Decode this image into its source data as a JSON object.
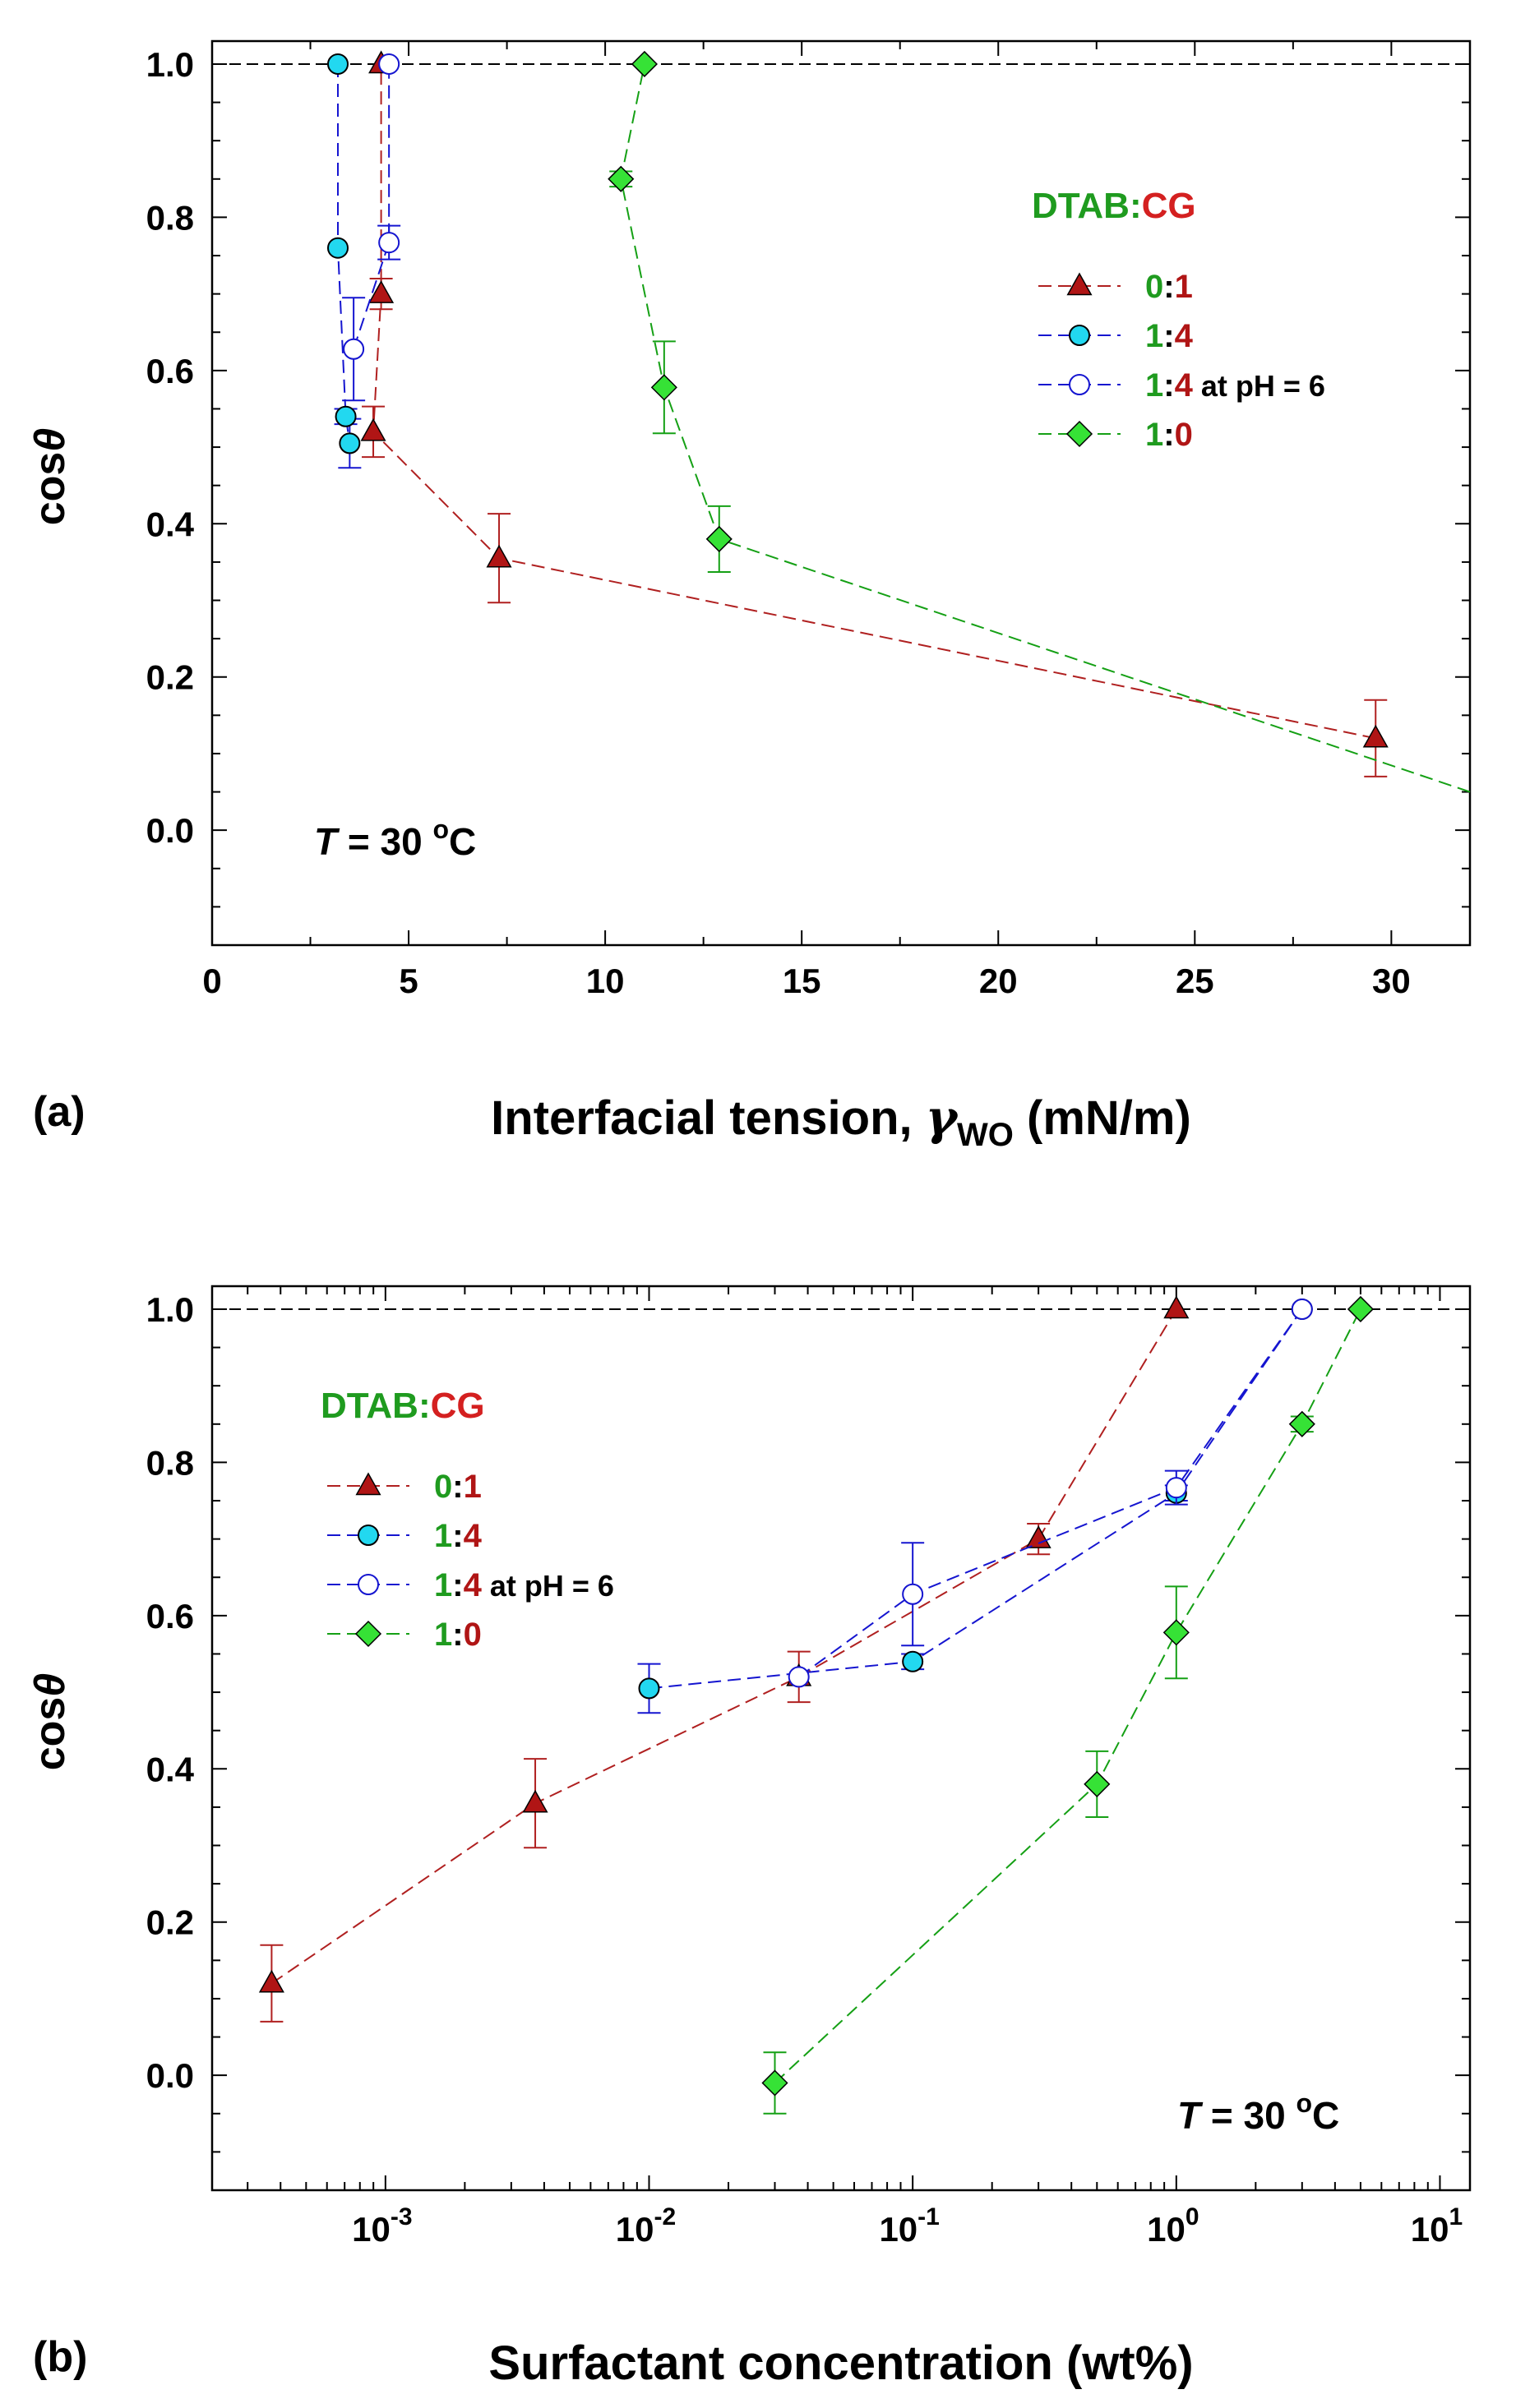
{
  "colors": {
    "green": "#1f9b1f",
    "red": "#b01515",
    "blue": "#1010c8",
    "cg_red": "#d42020",
    "cyan": "#22d8f0",
    "lime": "#36e236",
    "darkred_line": "#b02020",
    "blue_line": "#1515d0",
    "green_line": "#15a015",
    "black": "#000000"
  },
  "panels": [
    {
      "id": "a",
      "panel_label": "(a)",
      "xlabel_main": "Interfacial tension, ",
      "xlabel_symbol": "γ",
      "xlabel_sub": "WO",
      "xlabel_units": " (mN/m)",
      "ylabel_pre": "cos",
      "ylabel_theta": "θ",
      "temperature": {
        "symbol": "T",
        "rest": " = 30 ",
        "sup": "o",
        "unit": "C"
      },
      "legend_title": {
        "a": "DTAB",
        "sep": ":",
        "b": "CG"
      },
      "legend": [
        {
          "num": "0",
          "sep": ":",
          "den": "1",
          "extra": ""
        },
        {
          "num": "1",
          "sep": ":",
          "den": "4",
          "extra": ""
        },
        {
          "num": "1",
          "sep": ":",
          "den": "4",
          "extra": " at pH = 6"
        },
        {
          "num": "1",
          "sep": ":",
          "den": "0",
          "extra": ""
        }
      ]
    },
    {
      "id": "b",
      "panel_label": "(b)",
      "xlabel": "Surfactant concentration (wt%)",
      "ylabel_pre": "cos",
      "ylabel_theta": "θ",
      "temperature": {
        "symbol": "T",
        "rest": " = 30 ",
        "sup": "o",
        "unit": "C"
      },
      "legend_title": {
        "a": "DTAB",
        "sep": ":",
        "b": "CG"
      },
      "legend": [
        {
          "num": "0",
          "sep": ":",
          "den": "1",
          "extra": ""
        },
        {
          "num": "1",
          "sep": ":",
          "den": "4",
          "extra": ""
        },
        {
          "num": "1",
          "sep": ":",
          "den": "4",
          "extra": " at pH = 6"
        },
        {
          "num": "1",
          "sep": ":",
          "den": "0",
          "extra": ""
        }
      ]
    }
  ],
  "chart_data": [
    {
      "type": "line",
      "panel": "a",
      "xlabel": "Interfacial tension, γWO (mN/m)",
      "ylabel": "cosθ",
      "xlim": [
        0,
        32
      ],
      "ylim": [
        -0.15,
        1.03
      ],
      "x_ticks": [
        0,
        5,
        10,
        15,
        20,
        25,
        30
      ],
      "x_tick_labels": [
        "0",
        "5",
        "10",
        "15",
        "20",
        "25",
        "30"
      ],
      "y_ticks": [
        0.0,
        0.2,
        0.4,
        0.6,
        0.8,
        1.0
      ],
      "y_tick_labels": [
        "0.0",
        "0.2",
        "0.4",
        "0.6",
        "0.8",
        "1.0"
      ],
      "reference_line_y": 1.0,
      "series": [
        {
          "name": "0:1",
          "marker": "triangle",
          "fill": "red",
          "points": [
            [
              29.6,
              0.12,
              0.05
            ],
            [
              7.3,
              0.355,
              0.058
            ],
            [
              4.1,
              0.52,
              0.033
            ],
            [
              4.3,
              0.7,
              0.02
            ],
            [
              4.3,
              1.0,
              0
            ]
          ]
        },
        {
          "name": "1:4",
          "marker": "circle",
          "fill": "cyan",
          "points": [
            [
              3.2,
              1.0,
              0
            ],
            [
              3.2,
              0.76,
              0
            ],
            [
              3.4,
              0.54,
              0.01
            ],
            [
              3.5,
              0.505,
              0.032
            ]
          ]
        },
        {
          "name": "1:4 at pH = 6",
          "marker": "circle",
          "fill": "none",
          "points": [
            [
              3.6,
              0.628,
              0.067
            ],
            [
              4.5,
              0.767,
              0.022
            ],
            [
              4.5,
              1.0,
              0
            ]
          ]
        },
        {
          "name": "1:0",
          "marker": "diamond",
          "fill": "lime",
          "points": [
            [
              12.9,
              0.38,
              0.043
            ],
            [
              11.5,
              0.578,
              0.06
            ],
            [
              10.4,
              0.85,
              0.01
            ],
            [
              11.0,
              1.0,
              0
            ]
          ],
          "tail_to": [
            32,
            0.05
          ]
        }
      ]
    },
    {
      "type": "line",
      "panel": "b",
      "xlabel": "Surfactant concentration (wt%)",
      "ylabel": "cosθ",
      "xscale": "log",
      "xlim": [
        0.00022,
        13
      ],
      "ylim": [
        -0.15,
        1.03
      ],
      "x_ticks": [
        0.001,
        0.01,
        0.1,
        1,
        10
      ],
      "x_tick_labels": [
        {
          "base": "10",
          "exp": "-3"
        },
        {
          "base": "10",
          "exp": "-2"
        },
        {
          "base": "10",
          "exp": "-1"
        },
        {
          "base": "10",
          "exp": "0"
        },
        {
          "base": "10",
          "exp": "1"
        }
      ],
      "y_ticks": [
        0.0,
        0.2,
        0.4,
        0.6,
        0.8,
        1.0
      ],
      "y_tick_labels": [
        "0.0",
        "0.2",
        "0.4",
        "0.6",
        "0.8",
        "1.0"
      ],
      "reference_line_y": 1.0,
      "series": [
        {
          "name": "0:1",
          "marker": "triangle",
          "fill": "red",
          "points": [
            [
              0.00037,
              0.12,
              0.05
            ],
            [
              0.0037,
              0.355,
              0.058
            ],
            [
              0.037,
              0.52,
              0.033
            ],
            [
              0.3,
              0.7,
              0.02
            ],
            [
              1.0,
              1.0,
              0
            ]
          ]
        },
        {
          "name": "1:4",
          "marker": "circle",
          "fill": "cyan",
          "points": [
            [
              0.01,
              0.505,
              0.032
            ],
            [
              0.1,
              0.54,
              0.01
            ],
            [
              1.0,
              0.76,
              0.01
            ],
            [
              3.0,
              1.0,
              0
            ]
          ]
        },
        {
          "name": "1:4 at pH = 6",
          "marker": "circle",
          "fill": "none",
          "points": [
            [
              0.037,
              0.52,
              0
            ],
            [
              0.1,
              0.628,
              0.067
            ],
            [
              1.0,
              0.767,
              0.022
            ],
            [
              3.0,
              1.0,
              0
            ]
          ]
        },
        {
          "name": "1:0",
          "marker": "diamond",
          "fill": "lime",
          "points": [
            [
              0.03,
              -0.01,
              0.04
            ],
            [
              0.5,
              0.38,
              0.043
            ],
            [
              1.0,
              0.578,
              0.06
            ],
            [
              3.0,
              0.85,
              0.01
            ],
            [
              5.0,
              1.0,
              0
            ]
          ]
        }
      ]
    }
  ]
}
